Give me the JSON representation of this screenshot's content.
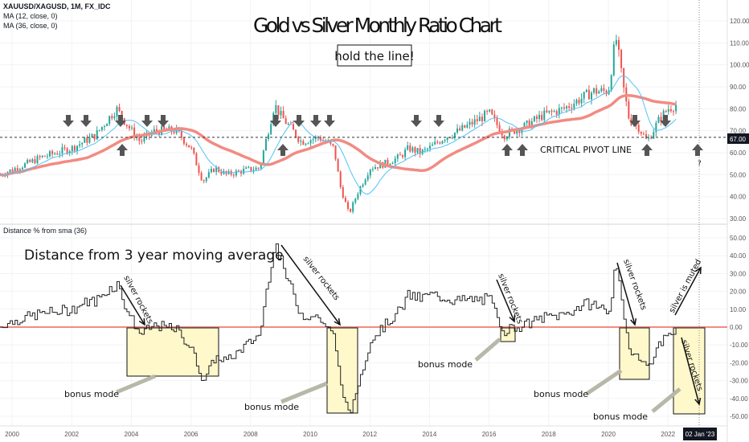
{
  "legend": {
    "symbol": "XAUUSD/XAGUSD, 1M, FX_IDC",
    "ma12": "MA (12, close, 0)",
    "ma36": "MA (36, close, 0)",
    "indicator": "Distance % from sma (36)"
  },
  "annotations": {
    "title": "Gold vs Silver Monthly Ratio Chart",
    "subtitle": "hold the line!",
    "pivot": "CRITICAL PIVOT LINE",
    "question": "?",
    "lower_title": "Distance from 3 year moving average",
    "silver_rockets": "silver rockets",
    "silver_muted": "silver is muted",
    "bonus": "bonus mode"
  },
  "price_tag": "67.00",
  "date_tag": "02 Jan '23",
  "colors": {
    "up": "#26a69a",
    "down": "#ef5350",
    "ma12": "#4fc3f7",
    "ma36": "#f28b82",
    "box": "#fff7c2"
  },
  "chart_data": {
    "type": "candlestick",
    "title": "Gold vs Silver Monthly Ratio Chart",
    "ylim": [
      28,
      127
    ],
    "ylim_lower": [
      -55,
      57
    ],
    "y_ticks": [
      "30.00",
      "40.00",
      "50.00",
      "60.00",
      "70.00",
      "80.00",
      "90.00",
      "100.00",
      "110.00",
      "120.00"
    ],
    "y_ticks_lower": [
      "50.00",
      "40.00",
      "30.00",
      "20.00",
      "10.00",
      "0.00",
      "-10.00",
      "-20.00",
      "-30.00",
      "-40.00",
      "-50.00"
    ],
    "x_ticks": [
      "2000",
      "2002",
      "2004",
      "2006",
      "2008",
      "2010",
      "2012",
      "2014",
      "2016",
      "2018",
      "2020",
      "2022"
    ],
    "pivot_level": 67,
    "ratio_keypoints": [
      [
        1999.6,
        50
      ],
      [
        2000.5,
        55
      ],
      [
        2001,
        58
      ],
      [
        2002,
        62
      ],
      [
        2002.8,
        68
      ],
      [
        2003.2,
        75
      ],
      [
        2003.5,
        80
      ],
      [
        2004,
        70
      ],
      [
        2004.3,
        65
      ],
      [
        2004.8,
        70
      ],
      [
        2005.5,
        70
      ],
      [
        2006,
        62
      ],
      [
        2006.4,
        47
      ],
      [
        2006.8,
        53
      ],
      [
        2007.2,
        50
      ],
      [
        2007.8,
        52
      ],
      [
        2008.3,
        53
      ],
      [
        2008.8,
        82
      ],
      [
        2009,
        77
      ],
      [
        2009.3,
        72
      ],
      [
        2009.7,
        65
      ],
      [
        2010.3,
        67
      ],
      [
        2010.8,
        62
      ],
      [
        2011,
        45
      ],
      [
        2011.3,
        32
      ],
      [
        2011.6,
        42
      ],
      [
        2012,
        53
      ],
      [
        2012.5,
        55
      ],
      [
        2013,
        58
      ],
      [
        2013.3,
        62
      ],
      [
        2013.7,
        60
      ],
      [
        2014,
        62
      ],
      [
        2014.5,
        67
      ],
      [
        2015,
        70
      ],
      [
        2015.5,
        74
      ],
      [
        2016,
        78
      ],
      [
        2016.5,
        68
      ],
      [
        2016.8,
        70
      ],
      [
        2017.2,
        72
      ],
      [
        2017.8,
        77
      ],
      [
        2018.5,
        80
      ],
      [
        2019,
        84
      ],
      [
        2019.5,
        88
      ],
      [
        2020,
        88
      ],
      [
        2020.25,
        113
      ],
      [
        2020.5,
        90
      ],
      [
        2020.7,
        75
      ],
      [
        2021,
        72
      ],
      [
        2021.3,
        65
      ],
      [
        2021.7,
        75
      ],
      [
        2022,
        80
      ],
      [
        2022.3,
        82
      ]
    ]
  }
}
